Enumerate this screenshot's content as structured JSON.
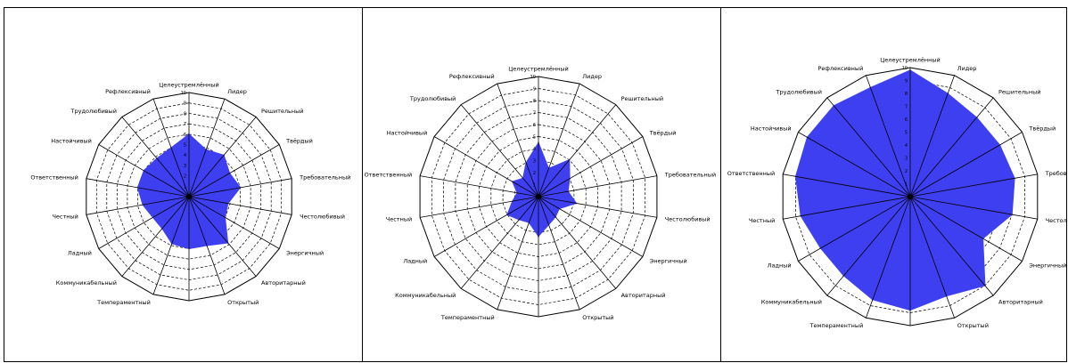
{
  "theme": {
    "fill": "#3f3ff2",
    "grid": "#000000",
    "background": "#ffffff"
  },
  "categories": [
    "Целеустремлённый",
    "Лидер",
    "Решительный",
    "Твёрдый",
    "Требовательный",
    "Честолюбивый",
    "Энергичный",
    "Авторитарный",
    "Открытый",
    "",
    "Темпераментный",
    "Коммуникабельный",
    "Ладный",
    "Честный",
    "Ответственный",
    "Настойчивый",
    "Трудолюбивый",
    "Рефлексивный"
  ],
  "chart_data": [
    {
      "type": "radar",
      "rings": 10,
      "rlim": [
        0,
        10
      ],
      "categories_ref": "categories",
      "values": [
        6.0,
        4.8,
        5.2,
        4.5,
        5.0,
        3.8,
        4.0,
        5.8,
        5.0,
        5.0,
        4.8,
        4.0,
        4.0,
        4.5,
        5.0,
        5.0,
        4.8,
        5.0
      ]
    },
    {
      "type": "radar",
      "rings": 10,
      "rlim": [
        0,
        10
      ],
      "categories_ref": "categories",
      "values": [
        4.5,
        2.5,
        4.0,
        3.0,
        2.5,
        3.2,
        2.0,
        2.2,
        2.5,
        3.3,
        2.3,
        2.5,
        3.0,
        2.2,
        1.8,
        2.5,
        2.0,
        3.0
      ]
    },
    {
      "type": "radar",
      "rings": 10,
      "rlim": [
        0,
        10
      ],
      "categories_ref": "categories",
      "values": [
        9.8,
        8.5,
        8.0,
        8.0,
        8.2,
        8.0,
        6.5,
        9.0,
        8.2,
        8.8,
        8.5,
        8.0,
        8.0,
        8.6,
        9.0,
        9.2,
        9.2,
        9.0
      ]
    }
  ]
}
